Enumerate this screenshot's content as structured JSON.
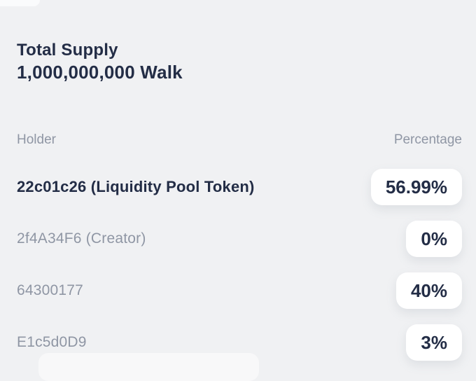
{
  "colors": {
    "background": "#f0f1f3",
    "text_dark": "#232d46",
    "text_gray": "#8f96a4",
    "pill_background": "#ffffff"
  },
  "supply": {
    "label": "Total Supply",
    "value": "1,000,000,000 Walk"
  },
  "table": {
    "columns": {
      "holder": "Holder",
      "percentage": "Percentage"
    },
    "rows": [
      {
        "holder": "22c01c26 (Liquidity Pool Token)",
        "percentage": "56.99%",
        "emphasized": true
      },
      {
        "holder": "2f4A34F6 (Creator)",
        "percentage": "0%",
        "emphasized": false
      },
      {
        "holder": "64300177",
        "percentage": "40%",
        "emphasized": false
      },
      {
        "holder": "E1c5d0D9",
        "percentage": "3%",
        "emphasized": false
      }
    ]
  }
}
